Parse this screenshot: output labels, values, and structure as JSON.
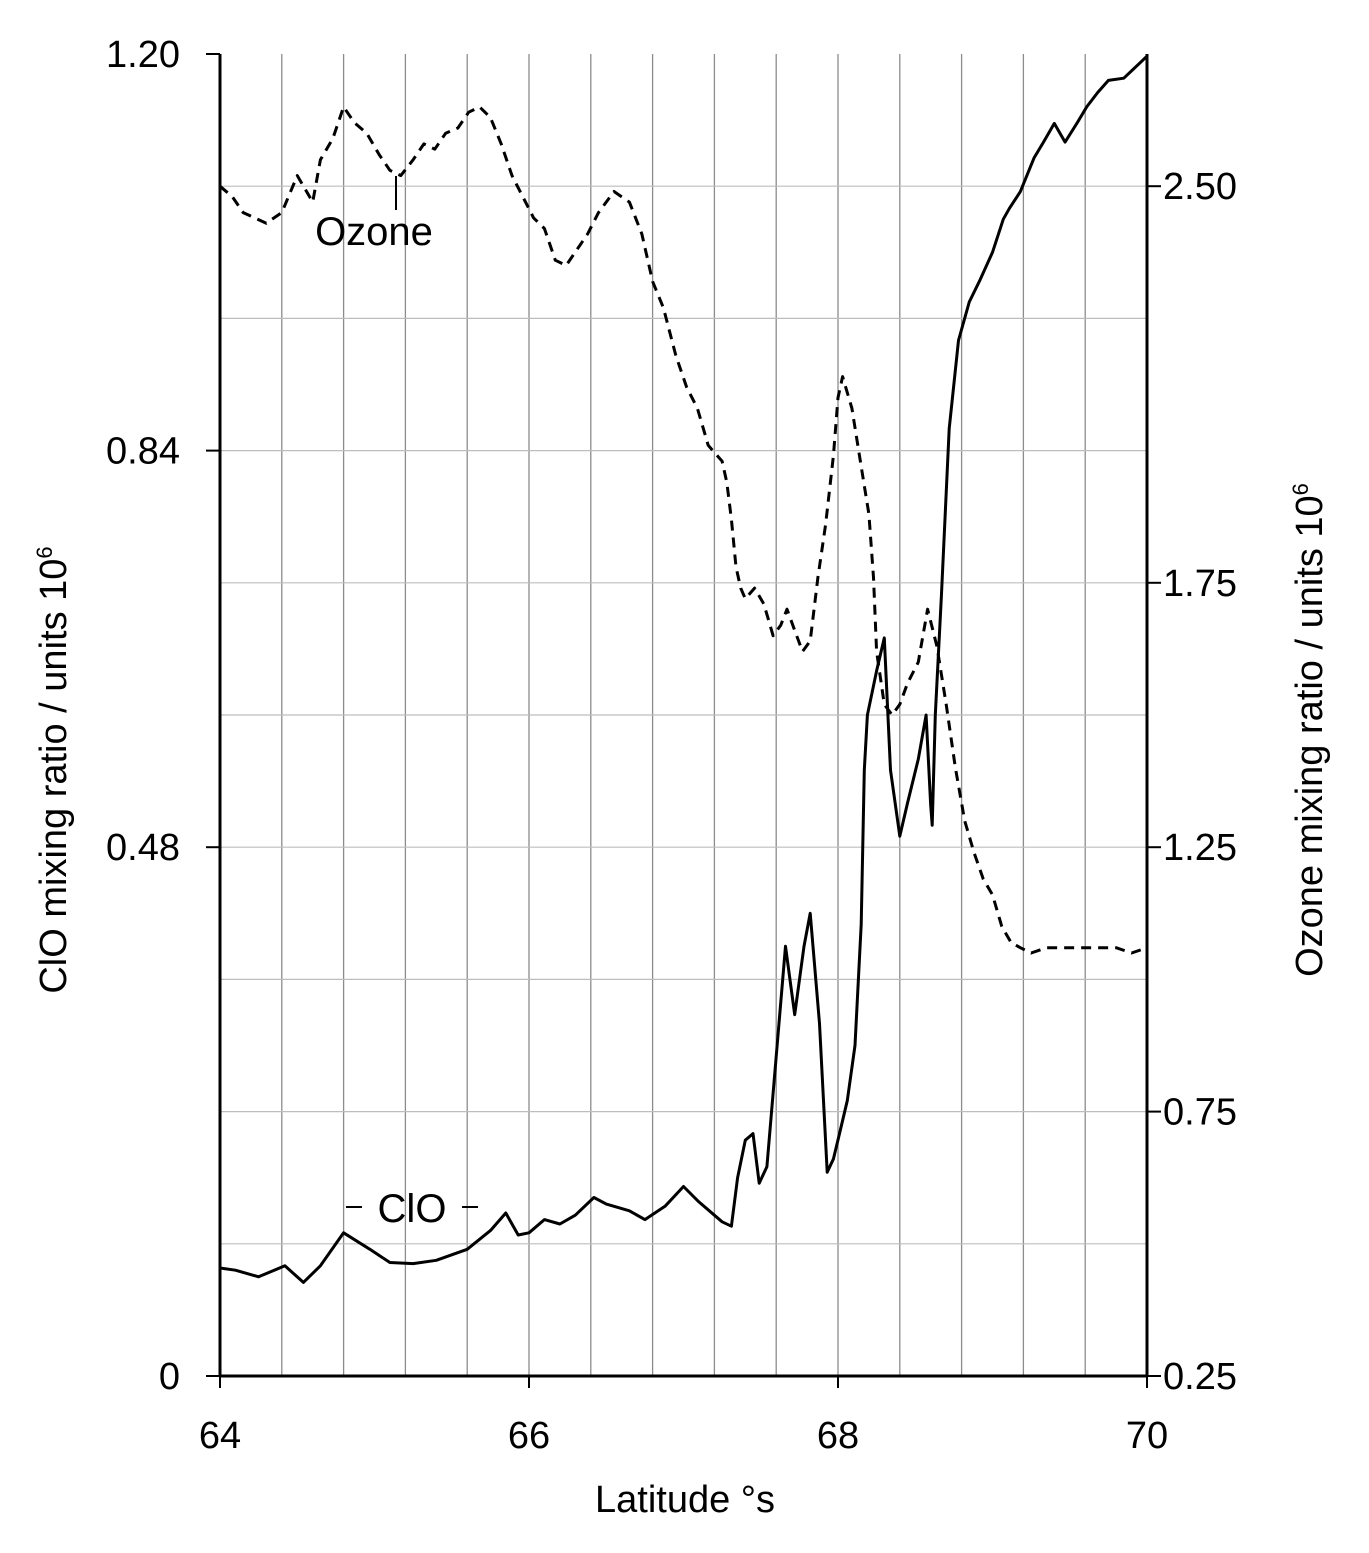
{
  "chart_data": {
    "type": "line",
    "xlabel": "Latitude °s",
    "ylabel_left": "ClO mixing ratio / units 10",
    "ylabel_left_sup": "6",
    "ylabel_right": "Ozone mixing ratio / units 10",
    "ylabel_right_sup": "6",
    "xlim": [
      64,
      70
    ],
    "ylim_left": [
      0,
      1.2
    ],
    "ylim_right": [
      0.25,
      2.75
    ],
    "x_ticks": [
      "64",
      "66",
      "68",
      "70"
    ],
    "y_left_ticks": [
      "0",
      "0.48",
      "0.84",
      "1.20"
    ],
    "y_right_ticks": [
      "0.25",
      "0.75",
      "1.25",
      "1.75",
      "2.50"
    ],
    "grid": true,
    "annotations": [
      {
        "text": "Ozone",
        "series": "Ozone"
      },
      {
        "text": "ClO",
        "series": "ClO"
      }
    ],
    "series": [
      {
        "name": "ClO",
        "axis": "left",
        "style": "solid",
        "x": [
          64.0,
          64.1,
          64.25,
          64.42,
          64.54,
          64.65,
          64.8,
          64.97,
          65.1,
          65.25,
          65.4,
          65.6,
          65.75,
          65.85,
          65.93,
          66.0,
          66.1,
          66.2,
          66.3,
          66.42,
          66.5,
          66.65,
          66.75,
          66.88,
          67.0,
          67.1,
          67.2,
          67.25,
          67.31,
          67.35,
          67.4,
          67.45,
          67.49,
          67.54,
          67.6,
          67.66,
          67.72,
          67.78,
          67.82,
          67.88,
          67.93,
          67.97,
          68.01,
          68.06,
          68.11,
          68.15,
          68.17,
          68.19,
          68.25,
          68.3,
          68.34,
          68.4,
          68.45,
          68.52,
          68.57,
          68.6,
          68.61,
          68.63,
          68.67,
          68.72,
          68.78,
          68.85,
          68.92,
          69.0,
          69.07,
          69.11,
          69.18,
          69.27,
          69.33,
          69.4,
          69.47,
          69.55,
          69.61,
          69.68,
          69.75,
          69.85,
          70.0
        ],
        "y": [
          0.098,
          0.096,
          0.09,
          0.1,
          0.085,
          0.1,
          0.13,
          0.115,
          0.103,
          0.102,
          0.105,
          0.115,
          0.132,
          0.148,
          0.128,
          0.13,
          0.142,
          0.138,
          0.146,
          0.162,
          0.156,
          0.15,
          0.142,
          0.154,
          0.172,
          0.158,
          0.146,
          0.14,
          0.136,
          0.18,
          0.214,
          0.22,
          0.175,
          0.19,
          0.29,
          0.39,
          0.328,
          0.39,
          0.42,
          0.32,
          0.185,
          0.197,
          0.22,
          0.25,
          0.3,
          0.41,
          0.55,
          0.6,
          0.64,
          0.67,
          0.55,
          0.49,
          0.52,
          0.56,
          0.6,
          0.518,
          0.5,
          0.6,
          0.71,
          0.86,
          0.94,
          0.975,
          0.995,
          1.02,
          1.05,
          1.06,
          1.075,
          1.106,
          1.12,
          1.137,
          1.12,
          1.138,
          1.152,
          1.165,
          1.176,
          1.178,
          1.198
        ]
      },
      {
        "name": "Ozone",
        "axis": "right",
        "style": "dashed",
        "x": [
          64.0,
          64.08,
          64.15,
          64.3,
          64.4,
          64.5,
          64.6,
          64.65,
          64.73,
          64.8,
          64.87,
          64.95,
          65.03,
          65.1,
          65.17,
          65.25,
          65.32,
          65.39,
          65.46,
          65.54,
          65.61,
          65.68,
          65.75,
          65.82,
          65.89,
          65.96,
          66.03,
          66.1,
          66.17,
          66.24,
          66.31,
          66.38,
          66.45,
          66.55,
          66.65,
          66.73,
          66.8,
          66.87,
          66.95,
          67.02,
          67.09,
          67.16,
          67.25,
          67.28,
          67.31,
          67.34,
          67.37,
          67.4,
          67.46,
          67.52,
          67.55,
          67.58,
          67.63,
          67.67,
          67.72,
          67.77,
          67.82,
          67.87,
          67.92,
          67.97,
          68.0,
          68.03,
          68.09,
          68.15,
          68.2,
          68.23,
          68.25,
          68.3,
          68.35,
          68.4,
          68.45,
          68.52,
          68.58,
          68.64,
          68.7,
          68.76,
          68.82,
          68.88,
          68.94,
          69.0,
          69.06,
          69.12,
          69.18,
          69.25,
          69.35,
          69.5,
          69.65,
          69.8,
          69.9,
          70.0
        ],
        "y": [
          2.5,
          2.48,
          2.45,
          2.43,
          2.45,
          2.52,
          2.47,
          2.55,
          2.59,
          2.65,
          2.62,
          2.6,
          2.56,
          2.53,
          2.52,
          2.55,
          2.58,
          2.57,
          2.6,
          2.61,
          2.64,
          2.65,
          2.63,
          2.58,
          2.52,
          2.48,
          2.44,
          2.42,
          2.36,
          2.35,
          2.38,
          2.41,
          2.45,
          2.49,
          2.47,
          2.41,
          2.32,
          2.27,
          2.18,
          2.12,
          2.08,
          2.01,
          1.98,
          1.94,
          1.87,
          1.78,
          1.74,
          1.72,
          1.74,
          1.71,
          1.68,
          1.65,
          1.67,
          1.7,
          1.66,
          1.62,
          1.64,
          1.76,
          1.86,
          1.99,
          2.1,
          2.14,
          2.08,
          1.97,
          1.88,
          1.76,
          1.62,
          1.52,
          1.5,
          1.52,
          1.56,
          1.6,
          1.7,
          1.63,
          1.52,
          1.4,
          1.3,
          1.24,
          1.19,
          1.16,
          1.1,
          1.07,
          1.06,
          1.05,
          1.06,
          1.06,
          1.06,
          1.06,
          1.05,
          1.06
        ]
      }
    ]
  }
}
